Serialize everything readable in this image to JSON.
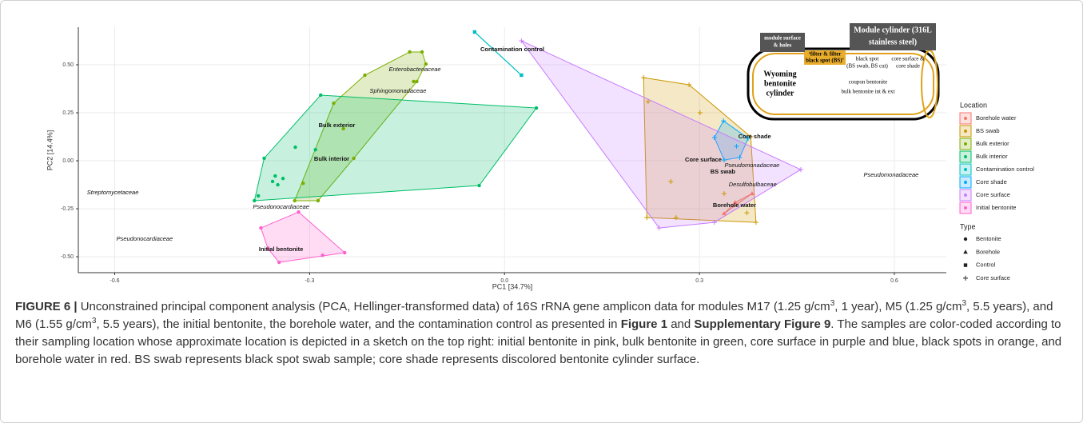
{
  "chart_data": {
    "type": "scatter",
    "x_label": "PC1 [34.7%]",
    "y_label": "PC2 [14.4%]",
    "xlim": [
      -0.656,
      0.68
    ],
    "ylim": [
      -0.583,
      0.696
    ],
    "xticks": [
      -0.6,
      -0.3,
      {
        "value": 0,
        "label": "0.0"
      },
      0.3,
      0.6
    ],
    "yticks": [
      {
        "value": -0.5,
        "label": "-0.50"
      },
      -0.25,
      {
        "value": 0,
        "label": "0.00"
      },
      0.25,
      {
        "value": 0.5,
        "label": "0.50"
      }
    ],
    "grid": true,
    "hulls": true,
    "legend_title": "Location",
    "series": [
      {
        "name": "Borehole water",
        "color": "#F8766D",
        "marker": "triangle",
        "x": [
          0.381,
          0.355,
          0.338
        ],
        "y": [
          -0.171,
          -0.217,
          -0.275
        ]
      },
      {
        "name": "BS swab",
        "color": "#CD9600",
        "marker": "plus",
        "x": [
          0.214,
          0.284,
          0.379,
          0.387,
          0.219,
          0.221,
          0.301,
          0.256,
          0.338,
          0.373,
          0.264
        ],
        "y": [
          0.433,
          0.396,
          0.125,
          -0.321,
          -0.296,
          0.308,
          0.25,
          -0.108,
          -0.171,
          -0.271,
          -0.296
        ]
      },
      {
        "name": "Bulk exterior",
        "color": "#7CAE00",
        "marker": "circle",
        "x": [
          -0.146,
          -0.127,
          -0.121,
          -0.135,
          -0.14,
          -0.215,
          -0.263,
          -0.248,
          -0.232,
          -0.287,
          -0.323,
          -0.31
        ],
        "y": [
          0.567,
          0.567,
          0.504,
          0.413,
          0.413,
          0.446,
          0.3,
          0.167,
          0.013,
          -0.208,
          -0.208,
          -0.117
        ]
      },
      {
        "name": "Bulk interior",
        "color": "#00BE67",
        "marker": "circle",
        "x": [
          -0.283,
          0.049,
          -0.039,
          -0.385,
          -0.37,
          -0.322,
          -0.291,
          -0.353,
          -0.357,
          -0.349,
          -0.341,
          -0.379
        ],
        "y": [
          0.342,
          0.275,
          -0.129,
          -0.208,
          0.013,
          0.071,
          0.058,
          -0.079,
          -0.108,
          -0.125,
          -0.092,
          -0.183
        ]
      },
      {
        "name": "Contamination control",
        "color": "#00BFC4",
        "marker": "square",
        "x": [
          -0.046,
          0.026
        ],
        "y": [
          0.671,
          0.446
        ]
      },
      {
        "name": "Core shade",
        "color": "#00A9FF",
        "marker": "plus",
        "x": [
          0.337,
          0.375,
          0.362,
          0.338,
          0.323,
          0.357
        ],
        "y": [
          0.208,
          0.117,
          0.017,
          0.004,
          0.121,
          0.075
        ]
      },
      {
        "name": "Core surface",
        "color": "#C77CFF",
        "marker": "plus",
        "x": [
          0.026,
          0.456,
          0.323,
          0.238
        ],
        "y": [
          0.625,
          -0.046,
          -0.321,
          -0.35
        ]
      },
      {
        "name": "Initial bentonite",
        "color": "#FF61CC",
        "marker": "circle",
        "x": [
          -0.375,
          -0.317,
          -0.246,
          -0.28,
          -0.347,
          -0.364
        ],
        "y": [
          -0.35,
          -0.267,
          -0.479,
          -0.492,
          -0.529,
          -0.458
        ]
      }
    ],
    "type_legend_title": "Type",
    "types": [
      {
        "name": "Bentonite",
        "marker": "circle"
      },
      {
        "name": "Borehole",
        "marker": "triangle"
      },
      {
        "name": "Control",
        "marker": "square"
      },
      {
        "name": "Core surface",
        "marker": "plus"
      }
    ],
    "annotations": [
      {
        "text": "Contamination control",
        "x": 0.012,
        "y": 0.579,
        "style": "bold"
      },
      {
        "text": "Enterobacteriaceae",
        "x": -0.138,
        "y": 0.475,
        "style": "italic"
      },
      {
        "text": "Sphingomonadaceae",
        "x": -0.164,
        "y": 0.363,
        "style": "italic"
      },
      {
        "text": "Bulk exterior",
        "x": -0.258,
        "y": 0.183,
        "style": "bold"
      },
      {
        "text": "Bulk interior",
        "x": -0.266,
        "y": 0.008,
        "style": "bold"
      },
      {
        "text": "Streptomycetaceae",
        "x": -0.603,
        "y": -0.167,
        "style": "italic"
      },
      {
        "text": "Pseudonocardiaceae",
        "x": -0.344,
        "y": -0.242,
        "style": "italic"
      },
      {
        "text": "Pseudonocardiaceae",
        "x": -0.554,
        "y": -0.408,
        "style": "italic"
      },
      {
        "text": "Initial bentonite",
        "x": -0.344,
        "y": -0.463,
        "style": "bold"
      },
      {
        "text": "Core shade",
        "x": 0.385,
        "y": 0.125,
        "style": "bold"
      },
      {
        "text": "Core surface",
        "x": 0.306,
        "y": 0.004,
        "style": "bold"
      },
      {
        "text": "Pseudomonadaceae",
        "x": 0.381,
        "y": -0.025,
        "style": "italic"
      },
      {
        "text": "BS swab",
        "x": 0.336,
        "y": -0.058,
        "style": "bold"
      },
      {
        "text": "Desulfobulbaceae",
        "x": 0.382,
        "y": -0.125,
        "style": "italic"
      },
      {
        "text": "Borehole water",
        "x": 0.354,
        "y": -0.233,
        "style": "bold"
      },
      {
        "text": "Pseudomonadaceae",
        "x": 0.595,
        "y": -0.075,
        "style": "italic"
      }
    ]
  },
  "sketch": {
    "module_surface": [
      "module surface",
      "& holes"
    ],
    "module_cylinder": [
      "Module cylinder (316L",
      "stainless steel)"
    ],
    "filter": [
      "‘filter & filter",
      "black spot (BS)’"
    ],
    "black_spot": [
      "black spot",
      "(BS swab, BS cut)"
    ],
    "core_surface": [
      "core surface &",
      "core shade"
    ],
    "wyoming": [
      "Wyoming",
      "bentonite",
      "cylinder"
    ],
    "coupon": "coupon bentonite",
    "bulk": "bulk bentonite int & ext"
  },
  "caption": {
    "segments": [
      {
        "text": "FIGURE 6 |",
        "style": "bold"
      },
      {
        "text": " Unconstrained principal component analysis (PCA, Hellinger-transformed data) of 16S rRNA gene amplicon data for modules M17 (1.25 g/cm",
        "style": "normal"
      },
      {
        "text": "3",
        "style": "sup"
      },
      {
        "text": ", 1 year), M5 (1.25 g/cm",
        "style": "normal"
      },
      {
        "text": "3",
        "style": "sup"
      },
      {
        "text": ", 5.5 years), and M6 (1.55 g/cm",
        "style": "normal"
      },
      {
        "text": "3",
        "style": "sup"
      },
      {
        "text": ", 5.5 years), the initial bentonite, the borehole water, and the contamination control as presented in ",
        "style": "normal"
      },
      {
        "text": "Figure 1",
        "style": "bold"
      },
      {
        "text": " and ",
        "style": "normal"
      },
      {
        "text": "Supplementary Figure 9",
        "style": "bold"
      },
      {
        "text": ". The samples are color-coded according to their sampling location whose approximate location is depicted in a sketch on the top right: initial bentonite in pink, bulk bentonite in green, core surface in purple and blue, black spots in orange, and borehole water in red. BS swab represents black spot swab sample; core shade represents discolored bentonite cylinder surface.",
        "style": "normal"
      }
    ]
  }
}
